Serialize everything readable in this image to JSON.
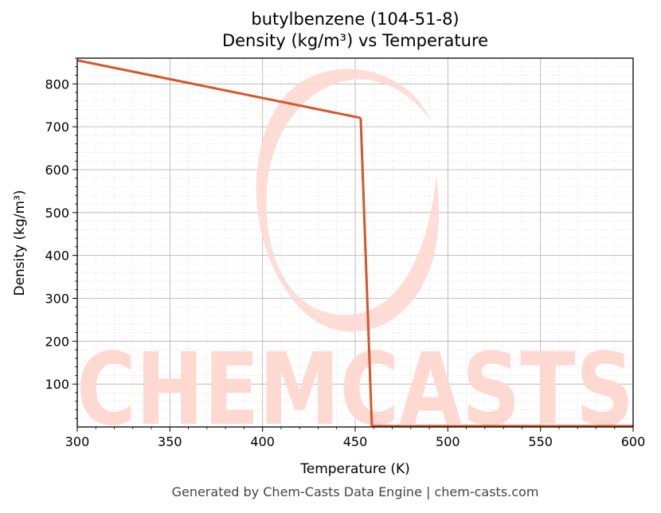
{
  "chart_data": {
    "type": "line",
    "title": "butylbenzene (104-51-8)",
    "subtitle": "Density (kg/m³) vs Temperature",
    "xlabel": "Temperature (K)",
    "ylabel": "Density (kg/m³)",
    "xlim": [
      300,
      600
    ],
    "ylim": [
      0,
      860
    ],
    "x_ticks": [
      300,
      350,
      400,
      450,
      500,
      550,
      600
    ],
    "y_ticks": [
      100,
      200,
      300,
      400,
      500,
      600,
      700,
      800
    ],
    "grid": true,
    "series": [
      {
        "color": "#d4572a",
        "x": [
          300,
          452.5,
          453,
          459,
          600
        ],
        "y": [
          855,
          721,
          718,
          2,
          2
        ]
      }
    ]
  },
  "watermark": {
    "text": "CHEMCASTS",
    "color": "#fdd9d2"
  },
  "footer": "Generated by Chem-Casts Data Engine | chem-casts.com"
}
